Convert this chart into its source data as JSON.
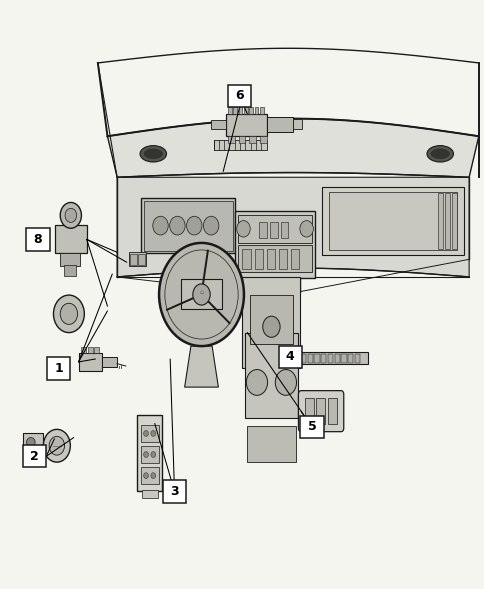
{
  "bg_color": "#f5f5f0",
  "fig_width": 4.85,
  "fig_height": 5.89,
  "dpi": 100,
  "line_color": "#1a1a1a",
  "label_boxes": [
    {
      "num": "1",
      "bx": 0.095,
      "by": 0.355
    },
    {
      "num": "2",
      "bx": 0.045,
      "by": 0.205
    },
    {
      "num": "3",
      "bx": 0.335,
      "by": 0.145
    },
    {
      "num": "4",
      "bx": 0.575,
      "by": 0.375
    },
    {
      "num": "5",
      "bx": 0.62,
      "by": 0.255
    },
    {
      "num": "6",
      "bx": 0.47,
      "by": 0.82
    },
    {
      "num": "8",
      "bx": 0.052,
      "by": 0.575
    }
  ],
  "leader_lines": [
    [
      0.14,
      0.374,
      0.185,
      0.4
    ],
    [
      0.14,
      0.374,
      0.23,
      0.53
    ],
    [
      0.14,
      0.374,
      0.22,
      0.475
    ],
    [
      0.09,
      0.224,
      0.095,
      0.27
    ],
    [
      0.09,
      0.224,
      0.155,
      0.26
    ],
    [
      0.38,
      0.165,
      0.31,
      0.285
    ],
    [
      0.38,
      0.165,
      0.355,
      0.38
    ],
    [
      0.62,
      0.394,
      0.668,
      0.394
    ],
    [
      0.668,
      0.275,
      0.668,
      0.332
    ],
    [
      0.668,
      0.275,
      0.5,
      0.43
    ],
    [
      0.515,
      0.839,
      0.49,
      0.79
    ],
    [
      0.097,
      0.594,
      0.16,
      0.6
    ]
  ]
}
